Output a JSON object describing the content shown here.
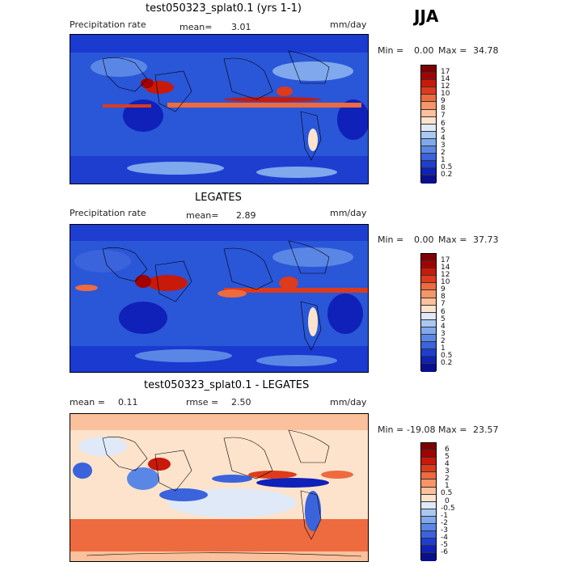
{
  "season": "JJA",
  "panels": [
    {
      "title": "test050323_splat0.1 (yrs 1-1)",
      "left_label": "Precipitation rate",
      "mean_label": "mean=",
      "mean_value": "3.01",
      "units": "mm/day",
      "min_label": "Min =",
      "min_value": "0.00",
      "max_label": "Max =",
      "max_value": "34.78",
      "colorbar_ticks": [
        "17",
        "14",
        "12",
        "10",
        "9",
        "8",
        "7",
        "6",
        "5",
        "4",
        "3",
        "2",
        "1",
        "0.5",
        "0.2"
      ]
    },
    {
      "title": "LEGATES",
      "left_label": "Precipitation rate",
      "mean_label": "mean=",
      "mean_value": "2.89",
      "units": "mm/day",
      "min_label": "Min =",
      "min_value": "0.00",
      "max_label": "Max =",
      "max_value": "37.73",
      "colorbar_ticks": [
        "17",
        "14",
        "12",
        "10",
        "9",
        "8",
        "7",
        "6",
        "5",
        "4",
        "3",
        "2",
        "1",
        "0.5",
        "0.2"
      ]
    },
    {
      "title": "test050323_splat0.1 - LEGATES",
      "mean_label": "mean =",
      "mean_value": "0.11",
      "rmse_label": "rmse =",
      "rmse_value": "2.50",
      "units": "mm/day",
      "min_label": "Min =",
      "min_value": "-19.08",
      "max_label": "Max =",
      "max_value": "23.57",
      "colorbar_ticks": [
        "6",
        "5",
        "4",
        "3",
        "2",
        "1",
        "0.5",
        "0",
        "-0.5",
        "-1",
        "-2",
        "-3",
        "-4",
        "-5",
        "-6"
      ]
    }
  ],
  "colors": {
    "precip_scale": [
      "#7f0000",
      "#a40000",
      "#c81a0a",
      "#dd3b1c",
      "#ee6a3f",
      "#f79566",
      "#fbc09c",
      "#fde3cc",
      "#dfe9f7",
      "#aac8f0",
      "#7fa9ec",
      "#5a87e6",
      "#3a63dc",
      "#1e3ed0",
      "#0f21b8",
      "#0a0f8c"
    ],
    "diff_scale": [
      "#7f0000",
      "#a40000",
      "#c81a0a",
      "#dd3b1c",
      "#ee6a3f",
      "#f79566",
      "#fbc09c",
      "#fde3cc",
      "#dfe9f7",
      "#aac8f0",
      "#7fa9ec",
      "#5a87e6",
      "#3a63dc",
      "#1e3ed0",
      "#0f21b8",
      "#0a0f8c"
    ],
    "land_outline": "#000000"
  }
}
